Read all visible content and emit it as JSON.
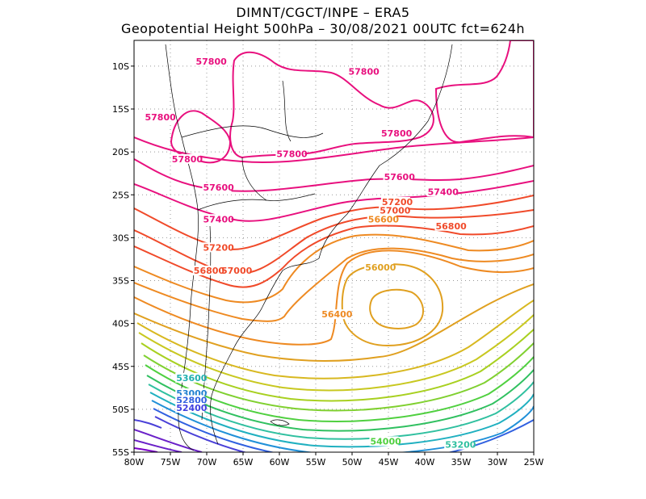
{
  "header": {
    "line1": "DIMNT/CGCT/INPE –  ERA5",
    "line2": "Geopotential Height 500hPa –  30/08/2021 00UTC fct=624h"
  },
  "map": {
    "lon_range": [
      -80,
      -25
    ],
    "lat_range": [
      -55,
      -7
    ],
    "x_ticks": [
      {
        "lon": -80,
        "label": "80W"
      },
      {
        "lon": -75,
        "label": "75W"
      },
      {
        "lon": -70,
        "label": "70W"
      },
      {
        "lon": -65,
        "label": "65W"
      },
      {
        "lon": -60,
        "label": "60W"
      },
      {
        "lon": -55,
        "label": "55W"
      },
      {
        "lon": -50,
        "label": "50W"
      },
      {
        "lon": -45,
        "label": "45W"
      },
      {
        "lon": -40,
        "label": "40W"
      },
      {
        "lon": -35,
        "label": "35W"
      },
      {
        "lon": -30,
        "label": "30W"
      },
      {
        "lon": -25,
        "label": "25W"
      }
    ],
    "y_ticks": [
      {
        "lat": -10,
        "label": "10S"
      },
      {
        "lat": -15,
        "label": "15S"
      },
      {
        "lat": -20,
        "label": "20S"
      },
      {
        "lat": -25,
        "label": "25S"
      },
      {
        "lat": -30,
        "label": "30S"
      },
      {
        "lat": -35,
        "label": "35S"
      },
      {
        "lat": -40,
        "label": "40S"
      },
      {
        "lat": -45,
        "label": "45S"
      },
      {
        "lat": -50,
        "label": "50S"
      },
      {
        "lat": -55,
        "label": "55S"
      }
    ],
    "grid": true,
    "colors": {
      "high": "#e8107e",
      "mid": "#f04a2a",
      "orange": "#ee8a22",
      "low": "#7a00c8"
    }
  },
  "contour_labels": [
    {
      "text": "57800",
      "lon": -71.5,
      "lat": -9.8,
      "color": "#e8107e"
    },
    {
      "text": "57800",
      "lon": -50.5,
      "lat": -11.0,
      "color": "#e8107e"
    },
    {
      "text": "57800",
      "lon": -78.5,
      "lat": -16.3,
      "color": "#e8107e"
    },
    {
      "text": "57800",
      "lon": -74.8,
      "lat": -21.2,
      "color": "#e8107e"
    },
    {
      "text": "57800",
      "lon": -60.4,
      "lat": -20.6,
      "color": "#e8107e"
    },
    {
      "text": "57800",
      "lon": -46.0,
      "lat": -18.2,
      "color": "#e8107e"
    },
    {
      "text": "57600",
      "lon": -70.5,
      "lat": -24.5,
      "color": "#e8107e"
    },
    {
      "text": "57600",
      "lon": -45.6,
      "lat": -23.3,
      "color": "#e8107e"
    },
    {
      "text": "57400",
      "lon": -70.5,
      "lat": -28.2,
      "color": "#e8107e"
    },
    {
      "text": "57400",
      "lon": -39.6,
      "lat": -25.0,
      "color": "#e8107e"
    },
    {
      "text": "57200",
      "lon": -45.9,
      "lat": -26.2,
      "color": "#f04a2a"
    },
    {
      "text": "57000",
      "lon": -46.2,
      "lat": -27.2,
      "color": "#f04a2a"
    },
    {
      "text": "57200",
      "lon": -70.5,
      "lat": -31.5,
      "color": "#f04a2a"
    },
    {
      "text": "57000",
      "lon": -68.0,
      "lat": -34.2,
      "color": "#f04a2a"
    },
    {
      "text": "56800",
      "lon": -71.8,
      "lat": -34.2,
      "color": "#f04a2a"
    },
    {
      "text": "56800",
      "lon": -38.5,
      "lat": -29.0,
      "color": "#f04a2a"
    },
    {
      "text": "56600",
      "lon": -47.8,
      "lat": -28.2,
      "color": "#ee8a22"
    },
    {
      "text": "56400",
      "lon": -54.2,
      "lat": -39.3,
      "color": "#ee8a22"
    },
    {
      "text": "56000",
      "lon": -48.2,
      "lat": -33.8,
      "color": "#e0a020"
    },
    {
      "text": "53600",
      "lon": -74.2,
      "lat": -46.7,
      "color": "#20b0b0"
    },
    {
      "text": "53000",
      "lon": -74.2,
      "lat": -48.5,
      "color": "#2080d0"
    },
    {
      "text": "52800",
      "lon": -74.2,
      "lat": -49.3,
      "color": "#3060e0"
    },
    {
      "text": "52400",
      "lon": -74.2,
      "lat": -50.2,
      "color": "#4040e0"
    },
    {
      "text": "54000",
      "lon": -47.5,
      "lat": -54.1,
      "color": "#50d040"
    },
    {
      "text": "53200",
      "lon": -37.2,
      "lat": -54.5,
      "color": "#30c0a0"
    }
  ]
}
